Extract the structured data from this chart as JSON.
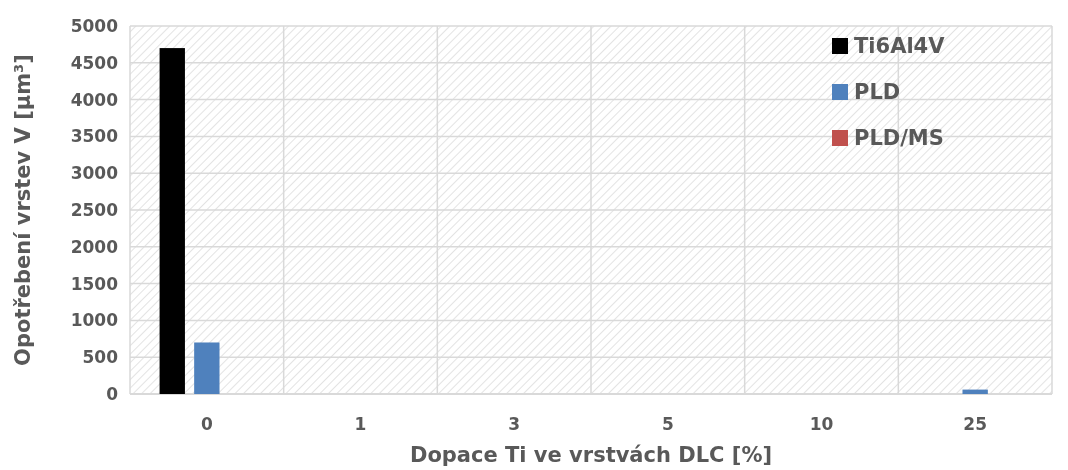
{
  "chart_data": {
    "type": "bar",
    "xlabel": "Dopace Ti ve vrstvách DLC [%]",
    "ylabel": "Opotřebení vrstev V [µm³]",
    "categories": [
      "0",
      "1",
      "3",
      "5",
      "10",
      "25"
    ],
    "series": [
      {
        "name": "Ti6Al4V",
        "color": "#000000",
        "values": [
          4700,
          null,
          null,
          null,
          null,
          null
        ]
      },
      {
        "name": "PLD",
        "color": "#4f81bd",
        "values": [
          700,
          null,
          null,
          null,
          null,
          60
        ]
      },
      {
        "name": "PLD/MS",
        "color": "#c0504d",
        "values": [
          null,
          null,
          null,
          null,
          null,
          null
        ]
      }
    ],
    "ylim": [
      0,
      5000
    ],
    "yticks": [
      0,
      500,
      1000,
      1500,
      2000,
      2500,
      3000,
      3500,
      4000,
      4500,
      5000
    ],
    "grid": true,
    "legend": "top right"
  }
}
